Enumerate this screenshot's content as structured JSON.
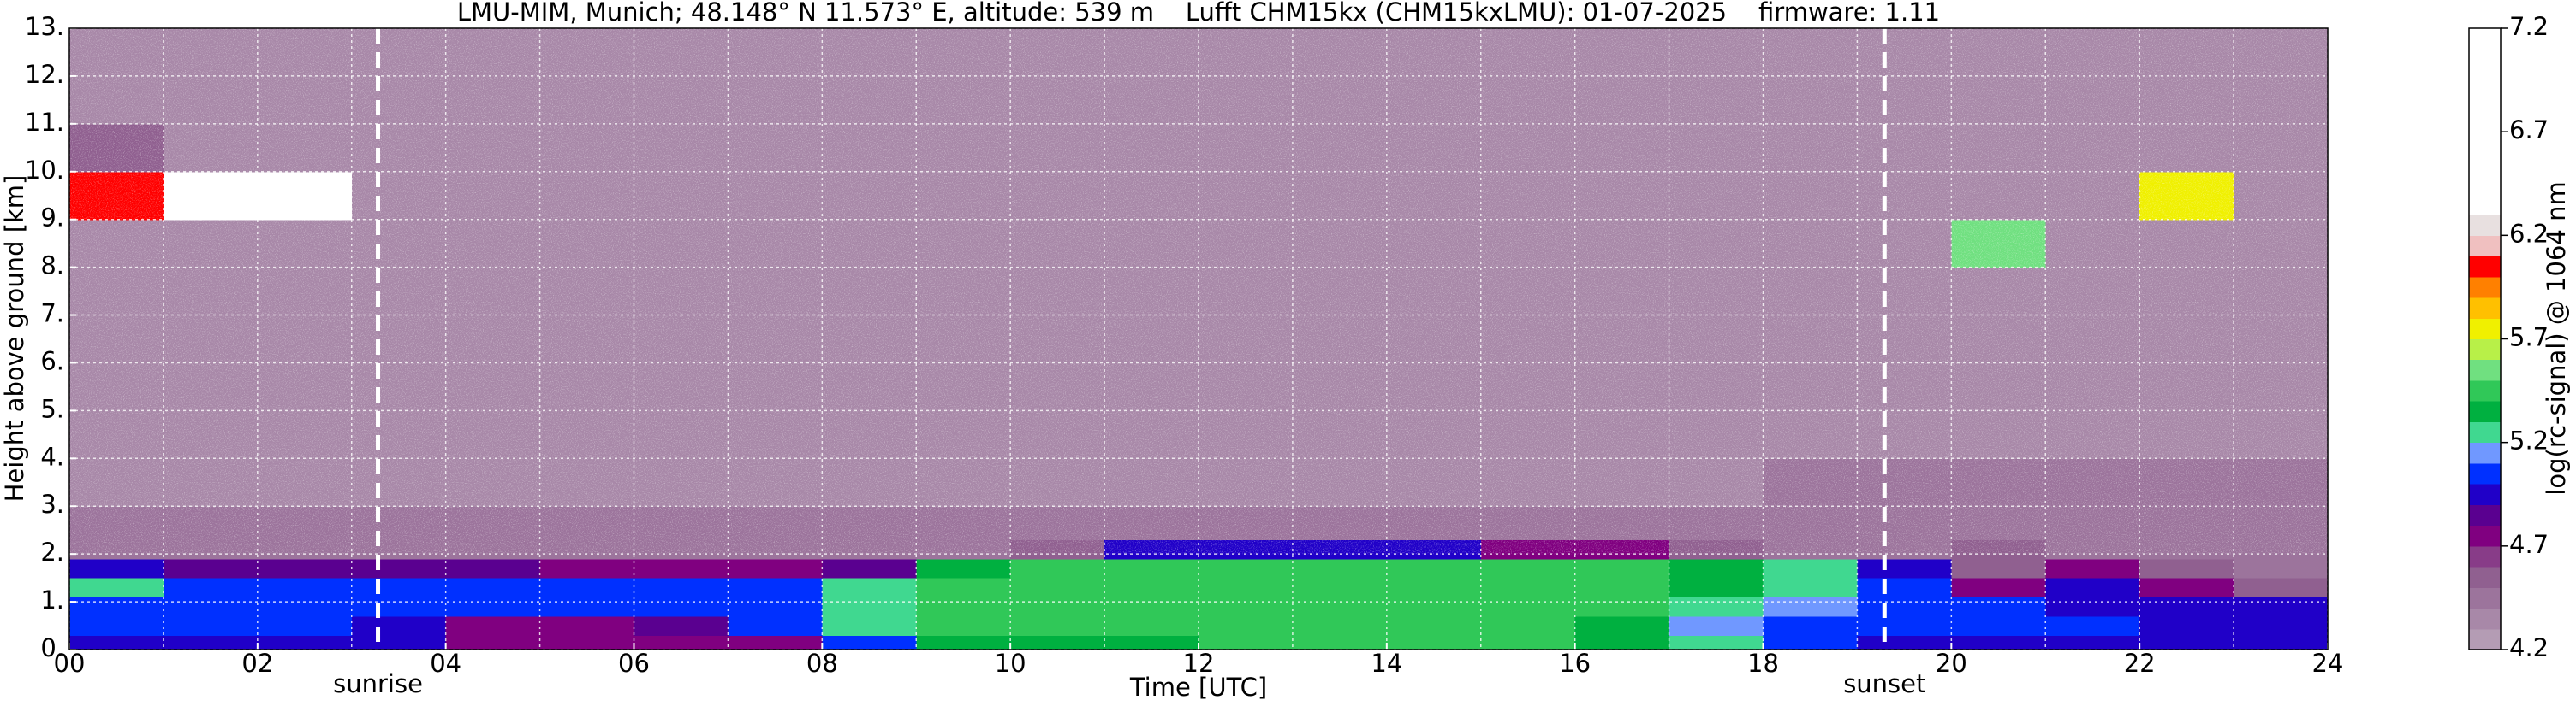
{
  "chart_data": {
    "type": "heatmap",
    "title": "LMU-MIM, Munich; 48.148° N 11.573° E, altitude: 539 m    Lufft CHM15kx (CHM15kxLMU): 01-07-2025    firmware: 1.11",
    "x_label": "Time [UTC]",
    "y_label": "Height above ground [km]",
    "colorbar_label": "log(rc-signal) @ 1064 nm",
    "x": [
      0,
      1,
      2,
      3,
      4,
      5,
      6,
      7,
      8,
      9,
      10,
      11,
      12,
      13,
      14,
      15,
      16,
      17,
      18,
      19,
      20,
      21,
      22,
      23,
      24
    ],
    "y": [
      0,
      0.3,
      0.7,
      1.1,
      1.5,
      1.9,
      2.3,
      3,
      4,
      5,
      6,
      7,
      8,
      9,
      10,
      11,
      12,
      13
    ],
    "values": [
      [
        5.0,
        5.0,
        5.0,
        5.0,
        4.75,
        4.75,
        4.75,
        4.8,
        5.1,
        5.35,
        5.35,
        5.35,
        5.4,
        5.4,
        5.4,
        5.4,
        5.35,
        5.2,
        5.1,
        5.0,
        5.0,
        5.0,
        5.0,
        5.0
      ],
      [
        5.1,
        5.1,
        5.1,
        5.0,
        4.8,
        4.8,
        4.85,
        5.05,
        5.2,
        5.4,
        5.45,
        5.4,
        5.4,
        5.45,
        5.45,
        5.4,
        5.35,
        5.15,
        5.1,
        5.1,
        5.05,
        5.05,
        5.0,
        5.0
      ],
      [
        5.1,
        5.1,
        5.1,
        5.1,
        5.1,
        5.1,
        5.1,
        5.1,
        5.25,
        5.45,
        5.5,
        5.45,
        5.45,
        5.45,
        5.45,
        5.45,
        5.4,
        5.2,
        5.15,
        5.1,
        5.1,
        5.0,
        5.0,
        4.95
      ],
      [
        5.25,
        5.1,
        5.05,
        5.05,
        5.05,
        5.05,
        5.05,
        5.1,
        5.2,
        5.45,
        5.5,
        5.5,
        5.45,
        5.45,
        5.5,
        5.45,
        5.4,
        5.35,
        5.3,
        5.1,
        4.8,
        4.95,
        4.75,
        4.6
      ],
      [
        4.9,
        4.85,
        4.85,
        4.85,
        4.85,
        4.8,
        4.8,
        4.8,
        4.85,
        5.35,
        5.4,
        5.45,
        5.45,
        5.45,
        5.4,
        5.4,
        5.4,
        5.35,
        5.3,
        5.0,
        4.6,
        4.7,
        4.55,
        4.5
      ],
      [
        4.5,
        4.5,
        4.5,
        4.5,
        4.45,
        4.45,
        4.45,
        4.45,
        4.45,
        4.5,
        4.6,
        4.9,
        4.95,
        4.95,
        4.9,
        4.8,
        4.7,
        4.6,
        4.5,
        4.5,
        4.55,
        4.5,
        4.5,
        4.5
      ],
      [
        4.4,
        4.4,
        4.4,
        4.4,
        4.4,
        4.4,
        4.4,
        4.4,
        4.4,
        4.4,
        4.4,
        4.4,
        4.4,
        4.4,
        4.4,
        4.4,
        4.4,
        4.4,
        4.4,
        4.4,
        4.4,
        4.4,
        4.4,
        4.4
      ],
      [
        4.38,
        4.38,
        4.38,
        4.38,
        4.38,
        4.38,
        4.38,
        4.38,
        4.38,
        4.38,
        4.38,
        4.38,
        4.38,
        4.38,
        4.38,
        4.38,
        4.38,
        4.38,
        4.45,
        4.45,
        4.45,
        4.45,
        4.45,
        4.45
      ],
      [
        4.36,
        4.36,
        4.36,
        4.36,
        4.36,
        4.36,
        4.36,
        4.36,
        4.36,
        4.36,
        4.36,
        4.36,
        4.36,
        4.36,
        4.36,
        4.36,
        4.36,
        4.36,
        4.36,
        4.36,
        4.36,
        4.36,
        4.36,
        4.36
      ],
      [
        4.35,
        4.35,
        4.35,
        4.35,
        4.35,
        4.35,
        4.35,
        4.35,
        4.35,
        4.35,
        4.35,
        4.35,
        4.35,
        4.35,
        4.35,
        4.35,
        4.35,
        4.35,
        4.35,
        4.35,
        4.35,
        4.35,
        4.35,
        4.35
      ],
      [
        4.35,
        4.35,
        4.35,
        4.35,
        4.35,
        4.35,
        4.35,
        4.35,
        4.35,
        4.35,
        4.35,
        4.35,
        4.35,
        4.35,
        4.35,
        4.35,
        4.35,
        4.35,
        4.35,
        4.35,
        4.35,
        4.35,
        4.35,
        4.35
      ],
      [
        4.35,
        4.35,
        4.35,
        4.35,
        4.35,
        4.35,
        4.35,
        4.35,
        4.35,
        4.35,
        4.35,
        4.35,
        4.35,
        4.35,
        4.35,
        4.35,
        4.35,
        4.35,
        4.35,
        4.35,
        4.35,
        4.35,
        4.35,
        4.35
      ],
      [
        4.35,
        4.35,
        4.35,
        4.35,
        4.35,
        4.35,
        4.35,
        4.35,
        4.35,
        4.35,
        4.35,
        4.35,
        4.35,
        4.35,
        4.35,
        4.35,
        4.35,
        4.35,
        4.35,
        4.35,
        5.6,
        4.35,
        4.35,
        4.35
      ],
      [
        6.0,
        6.9,
        6.4,
        4.35,
        4.35,
        4.35,
        4.35,
        4.35,
        4.35,
        4.35,
        4.35,
        4.35,
        4.35,
        4.35,
        4.35,
        4.35,
        4.35,
        4.35,
        4.35,
        4.35,
        4.35,
        4.35,
        5.8,
        4.35
      ],
      [
        4.6,
        4.35,
        4.35,
        4.35,
        4.35,
        4.35,
        4.35,
        4.35,
        4.35,
        4.35,
        4.35,
        4.35,
        4.35,
        4.35,
        4.35,
        4.35,
        4.35,
        4.35,
        4.35,
        4.35,
        4.35,
        4.35,
        4.35,
        4.35
      ],
      [
        4.35,
        4.35,
        4.35,
        4.35,
        4.35,
        4.35,
        4.35,
        4.35,
        4.35,
        4.35,
        4.35,
        4.35,
        4.35,
        4.35,
        4.35,
        4.35,
        4.35,
        4.35,
        4.35,
        4.35,
        4.35,
        4.35,
        4.35,
        4.35
      ],
      [
        4.35,
        4.35,
        4.35,
        4.35,
        4.35,
        4.35,
        4.35,
        4.35,
        4.35,
        4.35,
        4.35,
        4.35,
        4.35,
        4.35,
        4.35,
        4.35,
        4.35,
        4.35,
        4.35,
        4.35,
        4.35,
        4.35,
        4.35,
        4.35
      ]
    ],
    "xlim": [
      0,
      24
    ],
    "ylim": [
      0,
      13
    ],
    "xticks": [
      {
        "value": 0,
        "label": "00"
      },
      {
        "value": 2,
        "label": "02"
      },
      {
        "value": 4,
        "label": "04"
      },
      {
        "value": 6,
        "label": "06"
      },
      {
        "value": 8,
        "label": "08"
      },
      {
        "value": 10,
        "label": "10"
      },
      {
        "value": 12,
        "label": "12"
      },
      {
        "value": 14,
        "label": "14"
      },
      {
        "value": 16,
        "label": "16"
      },
      {
        "value": 18,
        "label": "18"
      },
      {
        "value": 20,
        "label": "20"
      },
      {
        "value": 22,
        "label": "22"
      },
      {
        "value": 24,
        "label": "24"
      }
    ],
    "xminorticks": [
      1,
      3,
      5,
      7,
      9,
      11,
      13,
      15,
      17,
      19,
      21,
      23
    ],
    "yticks": [
      {
        "value": 0,
        "label": "0."
      },
      {
        "value": 1,
        "label": "1."
      },
      {
        "value": 2,
        "label": "2."
      },
      {
        "value": 3,
        "label": "3."
      },
      {
        "value": 4,
        "label": "4."
      },
      {
        "value": 5,
        "label": "5."
      },
      {
        "value": 6,
        "label": "6."
      },
      {
        "value": 7,
        "label": "7."
      },
      {
        "value": 8,
        "label": "8."
      },
      {
        "value": 9,
        "label": "9."
      },
      {
        "value": 10,
        "label": "10."
      },
      {
        "value": 11,
        "label": "11."
      },
      {
        "value": 12,
        "label": "12."
      },
      {
        "value": 13,
        "label": "13."
      }
    ],
    "grid": true,
    "clim": [
      4.2,
      7.2
    ],
    "cticks": [
      4.2,
      4.7,
      5.2,
      5.7,
      6.2,
      6.7,
      7.2
    ],
    "colormap": [
      "#b49cb4",
      "#a888a8",
      "#9c749c",
      "#906090",
      "#883c88",
      "#800080",
      "#5a0090",
      "#2000c8",
      "#0030ff",
      "#7098ff",
      "#40d890",
      "#00b040",
      "#30c858",
      "#70e080",
      "#b8f048",
      "#f0f000",
      "#ffc000",
      "#ff8000",
      "#ff0000",
      "#f0c0c0",
      "#e8e0e0",
      "#ffffff",
      "#ffffff",
      "#ffffff",
      "#ffffff",
      "#ffffff",
      "#ffffff",
      "#ffffff",
      "#ffffff",
      "#ffffff"
    ],
    "annotations": [
      {
        "x": 3.28,
        "label": "sunrise"
      },
      {
        "x": 19.29,
        "label": "sunset"
      }
    ]
  }
}
